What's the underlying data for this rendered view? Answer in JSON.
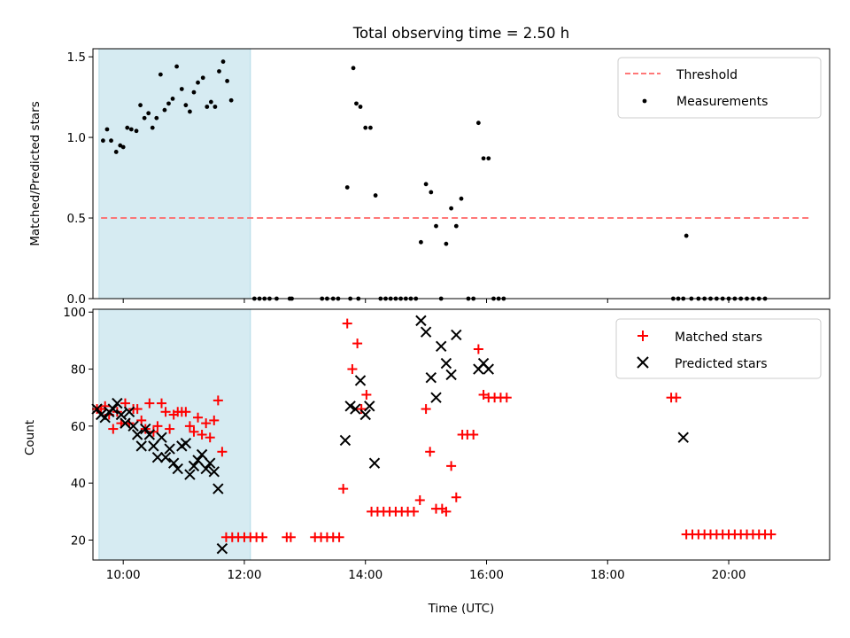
{
  "figure_title": "Total observing time = 2.50 h",
  "chart_data": [
    {
      "type": "scatter",
      "title": "Total observing time = 2.50 h",
      "xlabel": "",
      "ylabel": "Matched/Predicted stars",
      "xlim": [
        "09:30",
        "21:40"
      ],
      "ylim": [
        0,
        1.55
      ],
      "yticks": [
        "0.0",
        "0.5",
        "1.0",
        "1.5"
      ],
      "xticks": [
        "10:00",
        "12:00",
        "14:00",
        "16:00",
        "18:00",
        "20:00"
      ],
      "shaded_region": {
        "x": [
          "09:36",
          "12:06"
        ],
        "color": "#add8e6"
      },
      "legend": {
        "placement": "upper right",
        "entries": [
          "Threshold",
          "Measurements"
        ]
      },
      "series": [
        {
          "name": "Threshold",
          "kind": "dashed-line",
          "color": "#ff6666",
          "x": [
            "09:38",
            "21:20"
          ],
          "y": [
            0.5,
            0.5
          ]
        },
        {
          "name": "Measurements",
          "kind": "dots",
          "color": "#000000",
          "points": [
            [
              "09:40",
              0.98
            ],
            [
              "09:44",
              1.05
            ],
            [
              "09:48",
              0.98
            ],
            [
              "09:53",
              0.91
            ],
            [
              "09:57",
              0.95
            ],
            [
              "10:00",
              0.94
            ],
            [
              "10:04",
              1.06
            ],
            [
              "10:08",
              1.05
            ],
            [
              "10:13",
              1.04
            ],
            [
              "10:17",
              1.2
            ],
            [
              "10:21",
              1.12
            ],
            [
              "10:25",
              1.15
            ],
            [
              "10:29",
              1.06
            ],
            [
              "10:33",
              1.12
            ],
            [
              "10:37",
              1.39
            ],
            [
              "10:41",
              1.17
            ],
            [
              "10:45",
              1.21
            ],
            [
              "10:49",
              1.24
            ],
            [
              "10:53",
              1.44
            ],
            [
              "10:58",
              1.3
            ],
            [
              "11:02",
              1.2
            ],
            [
              "11:06",
              1.16
            ],
            [
              "11:10",
              1.28
            ],
            [
              "11:14",
              1.34
            ],
            [
              "11:19",
              1.37
            ],
            [
              "11:23",
              1.19
            ],
            [
              "11:27",
              1.22
            ],
            [
              "11:31",
              1.19
            ],
            [
              "11:35",
              1.41
            ],
            [
              "11:39",
              1.47
            ],
            [
              "11:43",
              1.35
            ],
            [
              "11:47",
              1.23
            ],
            [
              "12:10",
              0
            ],
            [
              "12:15",
              0
            ],
            [
              "12:20",
              0
            ],
            [
              "12:25",
              0
            ],
            [
              "12:32",
              0
            ],
            [
              "12:45",
              0
            ],
            [
              "12:47",
              0
            ],
            [
              "13:17",
              0
            ],
            [
              "13:22",
              0
            ],
            [
              "13:28",
              0
            ],
            [
              "13:33",
              0
            ],
            [
              "13:42",
              0.69
            ],
            [
              "13:45",
              0
            ],
            [
              "13:48",
              1.43
            ],
            [
              "13:51",
              1.21
            ],
            [
              "13:53",
              0
            ],
            [
              "13:55",
              1.19
            ],
            [
              "14:00",
              1.06
            ],
            [
              "14:05",
              1.06
            ],
            [
              "14:10",
              0.64
            ],
            [
              "14:15",
              0
            ],
            [
              "14:20",
              0
            ],
            [
              "14:25",
              0
            ],
            [
              "14:30",
              0
            ],
            [
              "14:35",
              0
            ],
            [
              "14:40",
              0
            ],
            [
              "14:45",
              0
            ],
            [
              "14:50",
              0
            ],
            [
              "14:55",
              0.35
            ],
            [
              "15:00",
              0.71
            ],
            [
              "15:05",
              0.66
            ],
            [
              "15:10",
              0.45
            ],
            [
              "15:15",
              0
            ],
            [
              "15:20",
              0.34
            ],
            [
              "15:25",
              0.56
            ],
            [
              "15:30",
              0.45
            ],
            [
              "15:35",
              0.62
            ],
            [
              "15:42",
              0
            ],
            [
              "15:47",
              0
            ],
            [
              "15:52",
              1.09
            ],
            [
              "15:57",
              0.87
            ],
            [
              "16:02",
              0.87
            ],
            [
              "16:07",
              0
            ],
            [
              "16:12",
              0
            ],
            [
              "16:17",
              0
            ],
            [
              "19:05",
              0
            ],
            [
              "19:10",
              0
            ],
            [
              "19:15",
              0
            ],
            [
              "19:18",
              0.39
            ],
            [
              "19:23",
              0
            ],
            [
              "19:30",
              0
            ],
            [
              "19:36",
              0
            ],
            [
              "19:42",
              0
            ],
            [
              "19:48",
              0
            ],
            [
              "19:54",
              0
            ],
            [
              "20:00",
              0
            ],
            [
              "20:06",
              0
            ],
            [
              "20:12",
              0
            ],
            [
              "20:18",
              0
            ],
            [
              "20:24",
              0
            ],
            [
              "20:30",
              0
            ],
            [
              "20:36",
              0
            ]
          ]
        }
      ]
    },
    {
      "type": "scatter",
      "title": "",
      "xlabel": "Time (UTC)",
      "ylabel": "Count",
      "xlim": [
        "09:30",
        "21:40"
      ],
      "ylim": [
        13,
        101
      ],
      "yticks": [
        "20",
        "40",
        "60",
        "80",
        "100"
      ],
      "xticks": [
        "10:00",
        "12:00",
        "14:00",
        "16:00",
        "18:00",
        "20:00"
      ],
      "shaded_region": {
        "x": [
          "09:36",
          "12:06"
        ],
        "color": "#add8e6"
      },
      "legend": {
        "placement": "upper right",
        "entries": [
          "Matched stars",
          "Predicted stars"
        ]
      },
      "series": [
        {
          "name": "Matched stars",
          "marker": "plus",
          "color": "#ff0000",
          "points": [
            [
              "09:34",
              66
            ],
            [
              "09:38",
              66
            ],
            [
              "09:42",
              67
            ],
            [
              "09:46",
              64
            ],
            [
              "09:50",
              59
            ],
            [
              "09:54",
              65
            ],
            [
              "09:58",
              61
            ],
            [
              "10:02",
              68
            ],
            [
              "10:06",
              61
            ],
            [
              "10:10",
              66
            ],
            [
              "10:14",
              66
            ],
            [
              "10:18",
              62
            ],
            [
              "10:22",
              59
            ],
            [
              "10:26",
              68
            ],
            [
              "10:30",
              58
            ],
            [
              "10:34",
              60
            ],
            [
              "10:38",
              68
            ],
            [
              "10:42",
              65
            ],
            [
              "10:46",
              59
            ],
            [
              "10:50",
              64
            ],
            [
              "10:54",
              65
            ],
            [
              "10:58",
              65
            ],
            [
              "11:02",
              65
            ],
            [
              "11:06",
              60
            ],
            [
              "11:10",
              58
            ],
            [
              "11:14",
              63
            ],
            [
              "11:18",
              57
            ],
            [
              "11:22",
              61
            ],
            [
              "11:26",
              56
            ],
            [
              "11:30",
              62
            ],
            [
              "11:34",
              69
            ],
            [
              "11:38",
              51
            ],
            [
              "11:42",
              21
            ],
            [
              "11:48",
              21
            ],
            [
              "11:54",
              21
            ],
            [
              "12:00",
              21
            ],
            [
              "12:06",
              21
            ],
            [
              "12:12",
              21
            ],
            [
              "12:18",
              21
            ],
            [
              "12:42",
              21
            ],
            [
              "12:46",
              21
            ],
            [
              "13:10",
              21
            ],
            [
              "13:16",
              21
            ],
            [
              "13:22",
              21
            ],
            [
              "13:28",
              21
            ],
            [
              "13:34",
              21
            ],
            [
              "13:38",
              38
            ],
            [
              "13:42",
              96
            ],
            [
              "13:47",
              80
            ],
            [
              "13:52",
              89
            ],
            [
              "13:56",
              66
            ],
            [
              "14:01",
              71
            ],
            [
              "14:06",
              30
            ],
            [
              "14:12",
              30
            ],
            [
              "14:18",
              30
            ],
            [
              "14:24",
              30
            ],
            [
              "14:30",
              30
            ],
            [
              "14:36",
              30
            ],
            [
              "14:42",
              30
            ],
            [
              "14:48",
              30
            ],
            [
              "14:54",
              34
            ],
            [
              "15:00",
              66
            ],
            [
              "15:04",
              51
            ],
            [
              "15:10",
              31
            ],
            [
              "15:16",
              31
            ],
            [
              "15:20",
              30
            ],
            [
              "15:25",
              46
            ],
            [
              "15:30",
              35
            ],
            [
              "15:36",
              57
            ],
            [
              "15:41",
              57
            ],
            [
              "15:47",
              57
            ],
            [
              "15:52",
              87
            ],
            [
              "15:57",
              71
            ],
            [
              "16:02",
              70
            ],
            [
              "16:08",
              70
            ],
            [
              "16:14",
              70
            ],
            [
              "16:20",
              70
            ],
            [
              "19:03",
              70
            ],
            [
              "19:08",
              70
            ],
            [
              "19:18",
              22
            ],
            [
              "19:24",
              22
            ],
            [
              "19:30",
              22
            ],
            [
              "19:36",
              22
            ],
            [
              "19:42",
              22
            ],
            [
              "19:48",
              22
            ],
            [
              "19:54",
              22
            ],
            [
              "20:00",
              22
            ],
            [
              "20:06",
              22
            ],
            [
              "20:12",
              22
            ],
            [
              "20:18",
              22
            ],
            [
              "20:24",
              22
            ],
            [
              "20:30",
              22
            ],
            [
              "20:36",
              22
            ],
            [
              "20:42",
              22
            ]
          ]
        },
        {
          "name": "Predicted stars",
          "marker": "x",
          "color": "#000000",
          "points": [
            [
              "09:34",
              66
            ],
            [
              "09:38",
              64
            ],
            [
              "09:42",
              63
            ],
            [
              "09:46",
              65
            ],
            [
              "09:50",
              66
            ],
            [
              "09:54",
              68
            ],
            [
              "09:58",
              64
            ],
            [
              "10:02",
              61
            ],
            [
              "10:06",
              65
            ],
            [
              "10:10",
              60
            ],
            [
              "10:14",
              57
            ],
            [
              "10:18",
              53
            ],
            [
              "10:22",
              59
            ],
            [
              "10:26",
              57
            ],
            [
              "10:30",
              53
            ],
            [
              "10:34",
              49
            ],
            [
              "10:38",
              56
            ],
            [
              "10:42",
              49
            ],
            [
              "10:46",
              52
            ],
            [
              "10:50",
              47
            ],
            [
              "10:54",
              45
            ],
            [
              "10:58",
              53
            ],
            [
              "11:02",
              54
            ],
            [
              "11:06",
              43
            ],
            [
              "11:10",
              46
            ],
            [
              "11:14",
              48
            ],
            [
              "11:18",
              50
            ],
            [
              "11:22",
              45
            ],
            [
              "11:26",
              47
            ],
            [
              "11:30",
              44
            ],
            [
              "11:34",
              38
            ],
            [
              "11:38",
              17
            ],
            [
              "13:40",
              55
            ],
            [
              "13:45",
              67
            ],
            [
              "13:50",
              66
            ],
            [
              "13:55",
              76
            ],
            [
              "14:00",
              64
            ],
            [
              "14:04",
              67
            ],
            [
              "14:09",
              47
            ],
            [
              "14:55",
              97
            ],
            [
              "15:00",
              93
            ],
            [
              "15:05",
              77
            ],
            [
              "15:10",
              70
            ],
            [
              "15:15",
              88
            ],
            [
              "15:20",
              82
            ],
            [
              "15:25",
              78
            ],
            [
              "15:30",
              92
            ],
            [
              "15:52",
              80
            ],
            [
              "15:57",
              82
            ],
            [
              "16:02",
              80
            ],
            [
              "19:15",
              56
            ]
          ]
        }
      ]
    }
  ],
  "colors": {
    "shade": "#add8e6",
    "threshold": "#ff6666",
    "matched": "#ff0000",
    "predicted": "#000000",
    "measurements": "#000000"
  }
}
